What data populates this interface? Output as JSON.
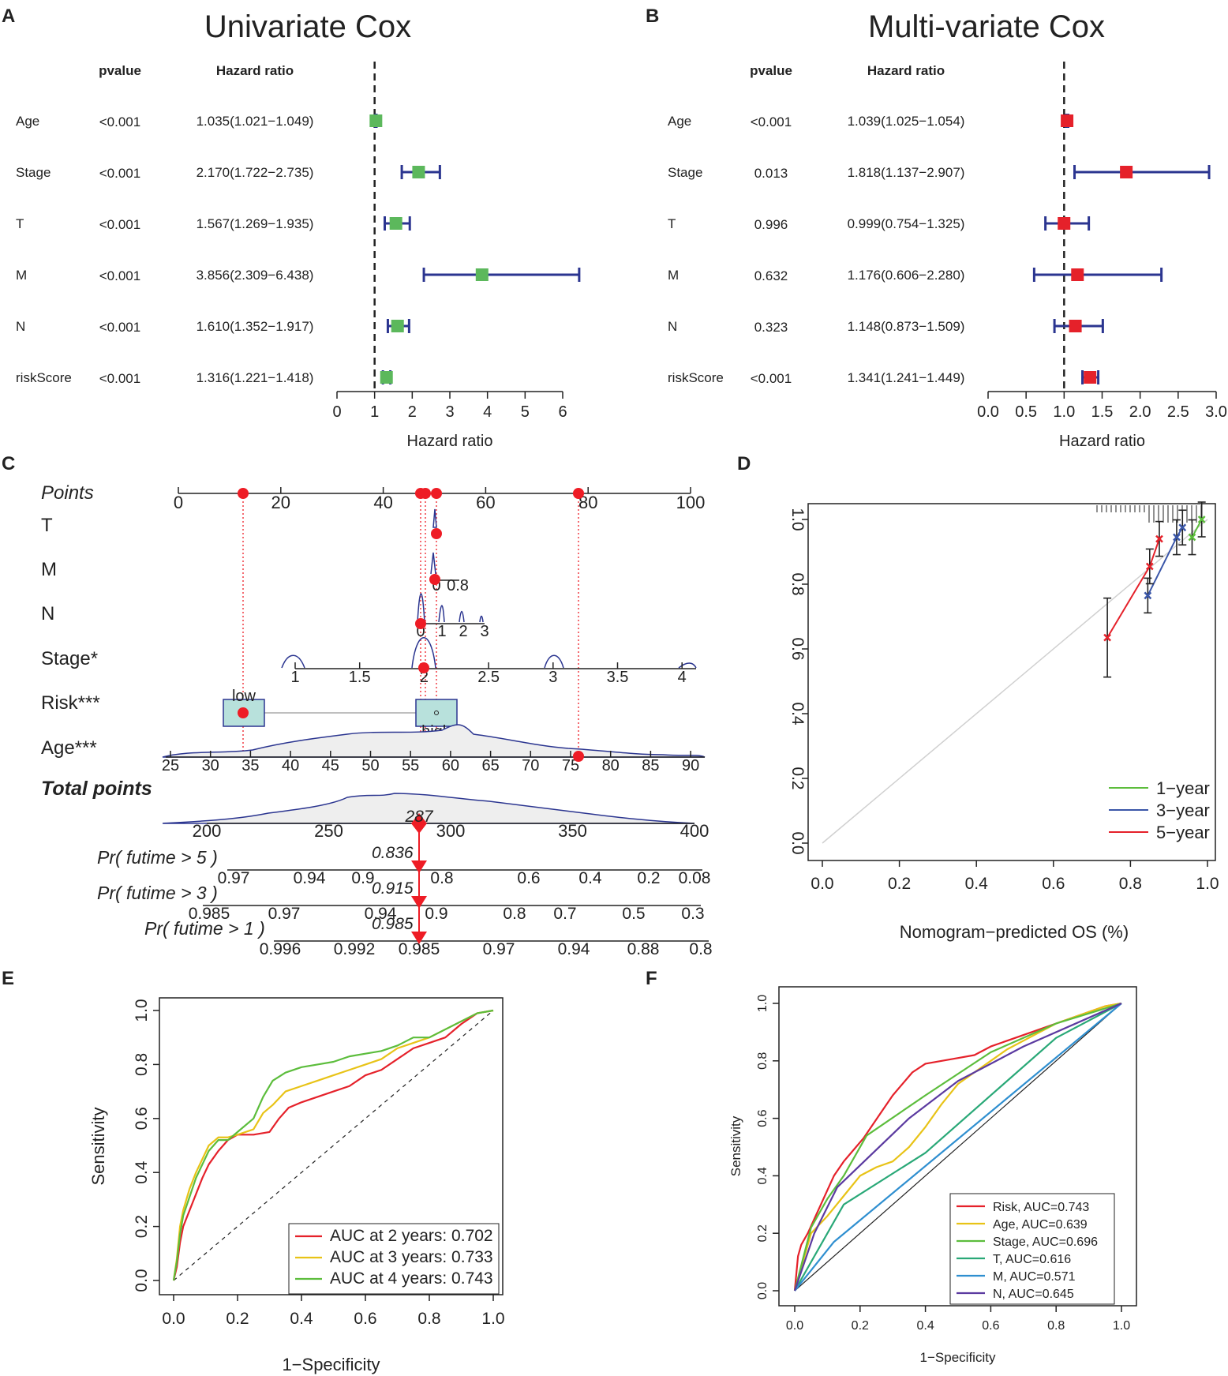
{
  "panel_letters": {
    "a": "A",
    "b": "B",
    "c": "C",
    "d": "D",
    "e": "E",
    "f": "F"
  },
  "colors": {
    "axis": "#222222",
    "ci": "#2b3590",
    "uni_box": "#5cb85c",
    "multi_box": "#e5212a",
    "nomo_red": "#ee1c25",
    "nomo_blue": "#2b3590",
    "grid": "#cccccc",
    "green": "#5cbd3c",
    "blue": "#3a56a8",
    "red": "#e5212a",
    "yellow": "#e8c317",
    "teal": "#29a877",
    "lightblue": "#2f8fd0",
    "purple": "#5b3aa0"
  },
  "chart_data": [
    {
      "id": "A",
      "type": "forest",
      "title": "Univariate Cox",
      "xlabel": "Hazard ratio",
      "col_pvalue": "pvalue",
      "col_hr": "Hazard ratio",
      "xlim": [
        0,
        6
      ],
      "ticks": [
        0,
        1,
        2,
        3,
        4,
        5,
        6
      ],
      "ref": 1,
      "rows": [
        {
          "label": "Age",
          "pvalue": "<0.001",
          "hr_text": "1.035(1.021−1.049)",
          "hr": 1.035,
          "lo": 1.021,
          "hi": 1.049
        },
        {
          "label": "Stage",
          "pvalue": "<0.001",
          "hr_text": "2.170(1.722−2.735)",
          "hr": 2.17,
          "lo": 1.722,
          "hi": 2.735
        },
        {
          "label": "T",
          "pvalue": "<0.001",
          "hr_text": "1.567(1.269−1.935)",
          "hr": 1.567,
          "lo": 1.269,
          "hi": 1.935
        },
        {
          "label": "M",
          "pvalue": "<0.001",
          "hr_text": "3.856(2.309−6.438)",
          "hr": 3.856,
          "lo": 2.309,
          "hi": 6.438
        },
        {
          "label": "N",
          "pvalue": "<0.001",
          "hr_text": "1.610(1.352−1.917)",
          "hr": 1.61,
          "lo": 1.352,
          "hi": 1.917
        },
        {
          "label": "riskScore",
          "pvalue": "<0.001",
          "hr_text": "1.316(1.221−1.418)",
          "hr": 1.316,
          "lo": 1.221,
          "hi": 1.418
        }
      ]
    },
    {
      "id": "B",
      "type": "forest",
      "title": "Multi-variate Cox",
      "xlabel": "Hazard ratio",
      "col_pvalue": "pvalue",
      "col_hr": "Hazard ratio",
      "xlim": [
        0,
        3
      ],
      "ticks": [
        0.0,
        0.5,
        1.0,
        1.5,
        2.0,
        2.5,
        3.0
      ],
      "tick_labels": [
        "0.0",
        "0.5",
        "1.0",
        "1.5",
        "2.0",
        "2.5",
        "3.0"
      ],
      "ref": 1,
      "rows": [
        {
          "label": "Age",
          "pvalue": "<0.001",
          "hr_text": "1.039(1.025−1.054)",
          "hr": 1.039,
          "lo": 1.025,
          "hi": 1.054
        },
        {
          "label": "Stage",
          "pvalue": "0.013",
          "hr_text": "1.818(1.137−2.907)",
          "hr": 1.818,
          "lo": 1.137,
          "hi": 2.907
        },
        {
          "label": "T",
          "pvalue": "0.996",
          "hr_text": "0.999(0.754−1.325)",
          "hr": 0.999,
          "lo": 0.754,
          "hi": 1.325
        },
        {
          "label": "M",
          "pvalue": "0.632",
          "hr_text": "1.176(0.606−2.280)",
          "hr": 1.176,
          "lo": 0.606,
          "hi": 2.28
        },
        {
          "label": "N",
          "pvalue": "0.323",
          "hr_text": "1.148(0.873−1.509)",
          "hr": 1.148,
          "lo": 0.873,
          "hi": 1.509
        },
        {
          "label": "riskScore",
          "pvalue": "<0.001",
          "hr_text": "1.341(1.241−1.449)",
          "hr": 1.341,
          "lo": 1.241,
          "hi": 1.449
        }
      ]
    },
    {
      "id": "C",
      "type": "nomogram",
      "points": {
        "label": "Points",
        "ticks": [
          0,
          20,
          40,
          60,
          80,
          100
        ]
      },
      "T": {
        "label": "T",
        "value": 1
      },
      "M": {
        "label": "M",
        "ticks": [
          "0",
          "0.8"
        ],
        "value": 0
      },
      "N": {
        "label": "N",
        "ticks": [
          "0",
          "1",
          "2",
          "3"
        ],
        "value": 0
      },
      "Stage": {
        "label": "Stage*",
        "ticks": [
          "1",
          "1.5",
          "2",
          "2.5",
          "3",
          "3.5",
          "4"
        ],
        "value": 2
      },
      "Risk": {
        "label": "Risk***",
        "low": "low",
        "high": "high",
        "value": "low"
      },
      "Age": {
        "label": "Age***",
        "ticks": [
          "25",
          "30",
          "35",
          "40",
          "45",
          "50",
          "55",
          "60",
          "65",
          "70",
          "75",
          "80",
          "85",
          "90"
        ],
        "value": 76
      },
      "total": {
        "label": "Total points",
        "ticks": [
          "200",
          "250",
          "300",
          "350",
          "400"
        ],
        "value": 287,
        "value_label": "287"
      },
      "prob": [
        {
          "label": "Pr( futime > 5 )",
          "ticks": [
            "0.97",
            "0.94",
            "0.9",
            "0.8",
            "0.6",
            "0.4",
            "0.2",
            "0.08"
          ],
          "value": 0.836,
          "value_label": "0.836"
        },
        {
          "label": "Pr( futime > 3 )",
          "ticks": [
            "0.985",
            "0.97",
            "0.94",
            "0.9",
            "0.8",
            "0.7",
            "0.5",
            "0.3"
          ],
          "value": 0.915,
          "value_label": "0.915"
        },
        {
          "label": "Pr( futime > 1 )",
          "ticks": [
            "0.996",
            "0.992",
            "0.985",
            "0.97",
            "0.94",
            "0.88",
            "0.8"
          ],
          "value": 0.985,
          "value_label": "0.985"
        }
      ]
    },
    {
      "id": "D",
      "type": "calibration",
      "xlabel": "Nomogram−predicted OS (%)",
      "ylabel": "",
      "xlim": [
        0,
        1
      ],
      "ylim": [
        0,
        1
      ],
      "xticks": [
        "0.0",
        "0.2",
        "0.4",
        "0.6",
        "0.8",
        "1.0"
      ],
      "yticks": [
        "0.0",
        "0.2",
        "0.4",
        "0.6",
        "0.8",
        "1.0"
      ],
      "legend": [
        "1−year",
        "3−year",
        "5−year"
      ],
      "series": [
        {
          "name": "1−year",
          "x": [
            0.96,
            0.985
          ],
          "y": [
            0.945,
            1.0
          ]
        },
        {
          "name": "3−year",
          "x": [
            0.845,
            0.92,
            0.935
          ],
          "y": [
            0.765,
            0.945,
            0.975
          ]
        },
        {
          "name": "5−year",
          "x": [
            0.74,
            0.85,
            0.875
          ],
          "y": [
            0.635,
            0.855,
            0.94
          ]
        }
      ]
    },
    {
      "id": "E",
      "type": "line",
      "xlabel": "1−Specificity",
      "ylabel": "Sensitivity",
      "xlim": [
        0,
        1
      ],
      "ylim": [
        0,
        1
      ],
      "xticks": [
        "0.0",
        "0.2",
        "0.4",
        "0.6",
        "0.8",
        "1.0"
      ],
      "yticks": [
        "0.0",
        "0.2",
        "0.4",
        "0.6",
        "0.8",
        "1.0"
      ],
      "series": [
        {
          "name": "AUC at 2 years: 0.702",
          "x": [
            0,
            0.01,
            0.02,
            0.03,
            0.05,
            0.07,
            0.09,
            0.11,
            0.14,
            0.17,
            0.2,
            0.25,
            0.3,
            0.33,
            0.36,
            0.4,
            0.45,
            0.5,
            0.55,
            0.6,
            0.65,
            0.7,
            0.75,
            0.8,
            0.85,
            0.9,
            0.95,
            1
          ],
          "y": [
            0,
            0.05,
            0.14,
            0.2,
            0.26,
            0.32,
            0.38,
            0.43,
            0.48,
            0.52,
            0.54,
            0.54,
            0.55,
            0.6,
            0.64,
            0.66,
            0.68,
            0.7,
            0.72,
            0.76,
            0.78,
            0.82,
            0.86,
            0.88,
            0.9,
            0.95,
            0.99,
            1
          ]
        },
        {
          "name": "AUC at 3 years: 0.733",
          "x": [
            0,
            0.01,
            0.02,
            0.03,
            0.05,
            0.07,
            0.09,
            0.11,
            0.14,
            0.17,
            0.2,
            0.25,
            0.28,
            0.31,
            0.35,
            0.4,
            0.45,
            0.5,
            0.55,
            0.6,
            0.65,
            0.7,
            0.75,
            0.8,
            0.85,
            0.9,
            0.95,
            1
          ],
          "y": [
            0,
            0.08,
            0.2,
            0.26,
            0.34,
            0.4,
            0.45,
            0.5,
            0.53,
            0.53,
            0.54,
            0.56,
            0.62,
            0.65,
            0.7,
            0.72,
            0.74,
            0.76,
            0.78,
            0.8,
            0.82,
            0.86,
            0.88,
            0.9,
            0.93,
            0.96,
            0.99,
            1
          ]
        },
        {
          "name": "AUC at 4 years: 0.743",
          "x": [
            0,
            0.01,
            0.02,
            0.03,
            0.05,
            0.07,
            0.09,
            0.11,
            0.14,
            0.17,
            0.2,
            0.25,
            0.28,
            0.31,
            0.35,
            0.4,
            0.45,
            0.5,
            0.55,
            0.6,
            0.65,
            0.7,
            0.75,
            0.8,
            0.85,
            0.9,
            0.95,
            1
          ],
          "y": [
            0,
            0.07,
            0.17,
            0.24,
            0.31,
            0.38,
            0.43,
            0.48,
            0.52,
            0.52,
            0.55,
            0.6,
            0.68,
            0.74,
            0.77,
            0.79,
            0.8,
            0.81,
            0.83,
            0.84,
            0.85,
            0.87,
            0.9,
            0.9,
            0.93,
            0.96,
            0.99,
            1
          ]
        }
      ]
    },
    {
      "id": "F",
      "type": "line",
      "xlabel": "1−Specificity",
      "ylabel": "Sensitivity",
      "xlim": [
        0,
        1
      ],
      "ylim": [
        0,
        1
      ],
      "xticks": [
        "0.0",
        "0.2",
        "0.4",
        "0.6",
        "0.8",
        "1.0"
      ],
      "yticks": [
        "0.0",
        "0.2",
        "0.4",
        "0.6",
        "0.8",
        "1.0"
      ],
      "series": [
        {
          "name": "Risk, AUC=0.743",
          "x": [
            0,
            0.01,
            0.02,
            0.04,
            0.06,
            0.08,
            0.1,
            0.12,
            0.15,
            0.18,
            0.21,
            0.24,
            0.27,
            0.3,
            0.33,
            0.36,
            0.4,
            0.45,
            0.5,
            0.55,
            0.6,
            0.65,
            0.7,
            0.75,
            0.8,
            0.85,
            0.9,
            0.95,
            1
          ],
          "y": [
            0,
            0.12,
            0.16,
            0.2,
            0.25,
            0.3,
            0.35,
            0.4,
            0.45,
            0.49,
            0.53,
            0.58,
            0.63,
            0.68,
            0.72,
            0.76,
            0.79,
            0.8,
            0.81,
            0.82,
            0.85,
            0.87,
            0.89,
            0.91,
            0.93,
            0.95,
            0.97,
            0.99,
            1
          ]
        },
        {
          "name": "Age, AUC=0.639",
          "x": [
            0,
            0.05,
            0.1,
            0.15,
            0.2,
            0.25,
            0.3,
            0.35,
            0.4,
            0.45,
            0.5,
            0.55,
            0.6,
            0.65,
            0.7,
            0.75,
            0.8,
            0.85,
            0.9,
            0.95,
            1
          ],
          "y": [
            0,
            0.2,
            0.26,
            0.33,
            0.4,
            0.43,
            0.45,
            0.5,
            0.57,
            0.65,
            0.72,
            0.76,
            0.8,
            0.84,
            0.87,
            0.9,
            0.93,
            0.95,
            0.97,
            0.99,
            1
          ]
        },
        {
          "name": "Stage, AUC=0.696",
          "x": [
            0,
            0.05,
            0.1,
            0.15,
            0.22,
            0.4,
            0.6,
            0.8,
            1
          ],
          "y": [
            0,
            0.22,
            0.32,
            0.4,
            0.54,
            0.68,
            0.83,
            0.93,
            1
          ]
        },
        {
          "name": "T, AUC=0.616",
          "x": [
            0,
            0.15,
            0.4,
            0.6,
            0.8,
            1
          ],
          "y": [
            0,
            0.3,
            0.48,
            0.68,
            0.88,
            1
          ]
        },
        {
          "name": "M, AUC=0.571",
          "x": [
            0,
            0.12,
            1
          ],
          "y": [
            0,
            0.17,
            1
          ]
        },
        {
          "name": "N, AUC=0.645",
          "x": [
            0,
            0.06,
            0.13,
            0.35,
            0.5,
            0.7,
            1
          ],
          "y": [
            0,
            0.2,
            0.36,
            0.6,
            0.73,
            0.85,
            1
          ]
        }
      ]
    }
  ]
}
